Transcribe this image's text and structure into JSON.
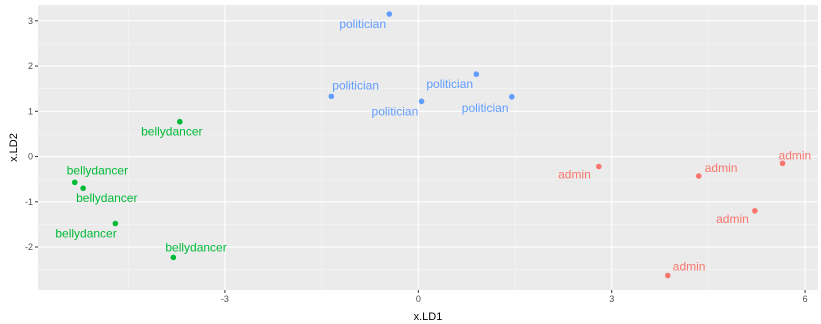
{
  "chart_data": {
    "type": "scatter",
    "xlabel": "x.LD1",
    "ylabel": "x.LD2",
    "xlim": [
      -5.9,
      6.2
    ],
    "ylim": [
      -2.95,
      3.35
    ],
    "x_ticks": [
      -3,
      0,
      3,
      6
    ],
    "y_ticks": [
      -2,
      -1,
      0,
      1,
      2,
      3
    ],
    "x_tick_labels": [
      "-3",
      "0",
      "3",
      "6"
    ],
    "y_tick_labels": [
      "-2",
      "-1",
      "0",
      "1",
      "2",
      "3"
    ],
    "grid": true,
    "background": "#ebebeb",
    "colors": {
      "admin": "#f8766d",
      "bellydancer": "#00ba38",
      "politician": "#619cff"
    },
    "points": [
      {
        "x": 2.8,
        "y": -0.22,
        "label": "admin",
        "group": "admin"
      },
      {
        "x": 4.35,
        "y": -0.43,
        "label": "admin",
        "group": "admin"
      },
      {
        "x": 5.65,
        "y": -0.15,
        "label": "admin",
        "group": "admin"
      },
      {
        "x": 5.22,
        "y": -1.2,
        "label": "admin",
        "group": "admin"
      },
      {
        "x": 3.87,
        "y": -2.63,
        "label": "admin",
        "group": "admin"
      },
      {
        "x": -3.7,
        "y": 0.77,
        "label": "bellydancer",
        "group": "bellydancer"
      },
      {
        "x": -5.33,
        "y": -0.57,
        "label": "bellydancer",
        "group": "bellydancer"
      },
      {
        "x": -5.2,
        "y": -0.7,
        "label": "bellydancer",
        "group": "bellydancer"
      },
      {
        "x": -4.7,
        "y": -1.48,
        "label": "bellydancer",
        "group": "bellydancer"
      },
      {
        "x": -3.8,
        "y": -2.23,
        "label": "bellydancer",
        "group": "bellydancer"
      },
      {
        "x": -0.45,
        "y": 3.15,
        "label": "politician",
        "group": "politician"
      },
      {
        "x": -1.35,
        "y": 1.33,
        "label": "politician",
        "group": "politician"
      },
      {
        "x": 0.9,
        "y": 1.82,
        "label": "politician",
        "group": "politician"
      },
      {
        "x": 0.05,
        "y": 1.22,
        "label": "politician",
        "group": "politician"
      },
      {
        "x": 1.45,
        "y": 1.32,
        "label": "politician",
        "group": "politician"
      }
    ]
  }
}
